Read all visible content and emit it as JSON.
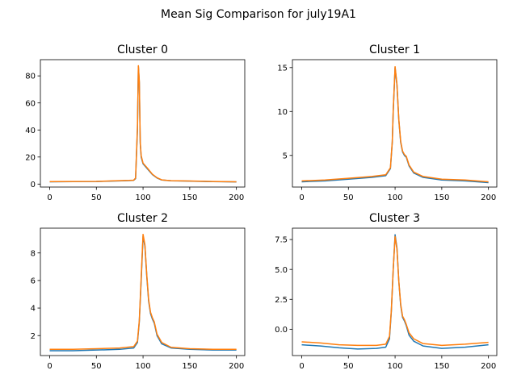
{
  "figure": {
    "suptitle": "Mean Sig Comparison for july19A1"
  },
  "colors": {
    "series_a": "#1f77b4",
    "series_b": "#ff7f0e"
  },
  "chart_data": [
    {
      "type": "line",
      "title": "Cluster 0",
      "xlabel": "",
      "ylabel": "",
      "xlim": [
        -9.95,
        208.95
      ],
      "ylim": [
        -2.2,
        92.0
      ],
      "xticks": [
        0,
        50,
        100,
        150,
        200
      ],
      "yticks": [
        0,
        20,
        40,
        60,
        80
      ],
      "grid": false,
      "series": [
        {
          "points": [
            [
              0,
              1.7
            ],
            [
              25,
              1.8
            ],
            [
              50,
              1.9
            ],
            [
              70,
              2.3
            ],
            [
              85,
              2.6
            ],
            [
              90,
              2.8
            ],
            [
              92,
              4
            ],
            [
              94,
              40
            ],
            [
              95,
              87
            ],
            [
              96,
              75
            ],
            [
              97,
              30
            ],
            [
              98,
              20
            ],
            [
              100,
              15
            ],
            [
              105,
              11
            ],
            [
              110,
              7
            ],
            [
              115,
              4.5
            ],
            [
              120,
              3
            ],
            [
              130,
              2.4
            ],
            [
              150,
              2.2
            ],
            [
              175,
              1.8
            ],
            [
              200,
              1.6
            ]
          ]
        },
        {
          "points": [
            [
              0,
              1.8
            ],
            [
              25,
              1.9
            ],
            [
              50,
              2.0
            ],
            [
              70,
              2.4
            ],
            [
              85,
              2.7
            ],
            [
              90,
              2.9
            ],
            [
              92,
              4.5
            ],
            [
              94,
              42
            ],
            [
              95,
              87.5
            ],
            [
              96,
              76
            ],
            [
              97,
              31
            ],
            [
              98,
              21
            ],
            [
              100,
              15.5
            ],
            [
              105,
              11.5
            ],
            [
              110,
              7.3
            ],
            [
              115,
              4.7
            ],
            [
              120,
              3.1
            ],
            [
              130,
              2.5
            ],
            [
              150,
              2.3
            ],
            [
              175,
              1.9
            ],
            [
              200,
              1.7
            ]
          ]
        }
      ]
    },
    {
      "type": "line",
      "title": "Cluster 1",
      "xlabel": "",
      "ylabel": "",
      "xlim": [
        -9.95,
        208.95
      ],
      "ylim": [
        1.4,
        15.9
      ],
      "xticks": [
        0,
        50,
        100,
        150,
        200
      ],
      "yticks": [
        5,
        10,
        15
      ],
      "grid": false,
      "series": [
        {
          "points": [
            [
              0,
              2.0
            ],
            [
              25,
              2.1
            ],
            [
              50,
              2.3
            ],
            [
              75,
              2.5
            ],
            [
              90,
              2.7
            ],
            [
              95,
              3.5
            ],
            [
              97,
              6.5
            ],
            [
              98,
              10
            ],
            [
              100,
              15.0
            ],
            [
              102,
              13
            ],
            [
              104,
              9
            ],
            [
              106,
              6.5
            ],
            [
              108,
              5.4
            ],
            [
              110,
              5.0
            ],
            [
              112,
              4.8
            ],
            [
              115,
              3.8
            ],
            [
              120,
              3.0
            ],
            [
              130,
              2.5
            ],
            [
              150,
              2.2
            ],
            [
              175,
              2.1
            ],
            [
              200,
              1.9
            ]
          ]
        },
        {
          "points": [
            [
              0,
              2.1
            ],
            [
              25,
              2.2
            ],
            [
              50,
              2.4
            ],
            [
              75,
              2.6
            ],
            [
              90,
              2.8
            ],
            [
              95,
              3.6
            ],
            [
              97,
              6.6
            ],
            [
              98,
              10.1
            ],
            [
              100,
              15.1
            ],
            [
              102,
              13.1
            ],
            [
              104,
              9.1
            ],
            [
              106,
              6.6
            ],
            [
              108,
              5.5
            ],
            [
              110,
              5.1
            ],
            [
              112,
              4.9
            ],
            [
              115,
              3.9
            ],
            [
              120,
              3.1
            ],
            [
              130,
              2.6
            ],
            [
              150,
              2.3
            ],
            [
              175,
              2.2
            ],
            [
              200,
              2.0
            ]
          ]
        }
      ]
    },
    {
      "type": "line",
      "title": "Cluster 2",
      "xlabel": "",
      "ylabel": "",
      "xlim": [
        -9.95,
        208.95
      ],
      "ylim": [
        0.55,
        9.8
      ],
      "xticks": [
        0,
        50,
        100,
        150,
        200
      ],
      "yticks": [
        2,
        4,
        6,
        8
      ],
      "grid": false,
      "series": [
        {
          "points": [
            [
              0,
              0.9
            ],
            [
              25,
              0.9
            ],
            [
              50,
              0.95
            ],
            [
              75,
              1.0
            ],
            [
              90,
              1.1
            ],
            [
              94,
              1.5
            ],
            [
              96,
              3
            ],
            [
              98,
              6
            ],
            [
              100,
              9.2
            ],
            [
              102,
              8.5
            ],
            [
              104,
              6.3
            ],
            [
              106,
              4.5
            ],
            [
              108,
              3.6
            ],
            [
              110,
              3.2
            ],
            [
              112,
              2.9
            ],
            [
              115,
              2.0
            ],
            [
              120,
              1.4
            ],
            [
              130,
              1.1
            ],
            [
              150,
              1.0
            ],
            [
              175,
              0.95
            ],
            [
              200,
              0.95
            ]
          ]
        },
        {
          "points": [
            [
              0,
              1.0
            ],
            [
              25,
              1.0
            ],
            [
              50,
              1.05
            ],
            [
              75,
              1.1
            ],
            [
              90,
              1.2
            ],
            [
              94,
              1.6
            ],
            [
              96,
              3.1
            ],
            [
              98,
              6.2
            ],
            [
              100,
              9.35
            ],
            [
              102,
              8.6
            ],
            [
              104,
              6.4
            ],
            [
              106,
              4.6
            ],
            [
              108,
              3.7
            ],
            [
              110,
              3.3
            ],
            [
              112,
              3.0
            ],
            [
              115,
              2.1
            ],
            [
              120,
              1.5
            ],
            [
              130,
              1.15
            ],
            [
              150,
              1.05
            ],
            [
              175,
              1.0
            ],
            [
              200,
              1.0
            ]
          ]
        }
      ]
    },
    {
      "type": "line",
      "title": "Cluster 3",
      "xlabel": "",
      "ylabel": "",
      "xlim": [
        -9.95,
        208.95
      ],
      "ylim": [
        -2.2,
        8.45
      ],
      "xticks": [
        0,
        50,
        100,
        150,
        200
      ],
      "yticks": [
        0.0,
        2.5,
        5.0,
        7.5
      ],
      "grid": false,
      "series": [
        {
          "points": [
            [
              0,
              -1.3
            ],
            [
              20,
              -1.4
            ],
            [
              40,
              -1.55
            ],
            [
              60,
              -1.65
            ],
            [
              80,
              -1.6
            ],
            [
              90,
              -1.5
            ],
            [
              94,
              -0.8
            ],
            [
              96,
              1.5
            ],
            [
              98,
              5
            ],
            [
              100,
              7.9
            ],
            [
              102,
              6.8
            ],
            [
              104,
              4
            ],
            [
              106,
              2
            ],
            [
              108,
              1
            ],
            [
              110,
              0.7
            ],
            [
              112,
              0.3
            ],
            [
              115,
              -0.5
            ],
            [
              120,
              -1.0
            ],
            [
              130,
              -1.4
            ],
            [
              150,
              -1.6
            ],
            [
              175,
              -1.5
            ],
            [
              200,
              -1.3
            ]
          ]
        },
        {
          "points": [
            [
              0,
              -1.05
            ],
            [
              20,
              -1.15
            ],
            [
              40,
              -1.3
            ],
            [
              60,
              -1.35
            ],
            [
              80,
              -1.35
            ],
            [
              90,
              -1.25
            ],
            [
              94,
              -0.6
            ],
            [
              96,
              1.6
            ],
            [
              98,
              5
            ],
            [
              100,
              7.75
            ],
            [
              102,
              6.7
            ],
            [
              104,
              4
            ],
            [
              106,
              2.1
            ],
            [
              108,
              1.1
            ],
            [
              110,
              0.8
            ],
            [
              112,
              0.4
            ],
            [
              115,
              -0.3
            ],
            [
              120,
              -0.8
            ],
            [
              130,
              -1.2
            ],
            [
              150,
              -1.35
            ],
            [
              175,
              -1.25
            ],
            [
              200,
              -1.1
            ]
          ]
        }
      ]
    }
  ]
}
